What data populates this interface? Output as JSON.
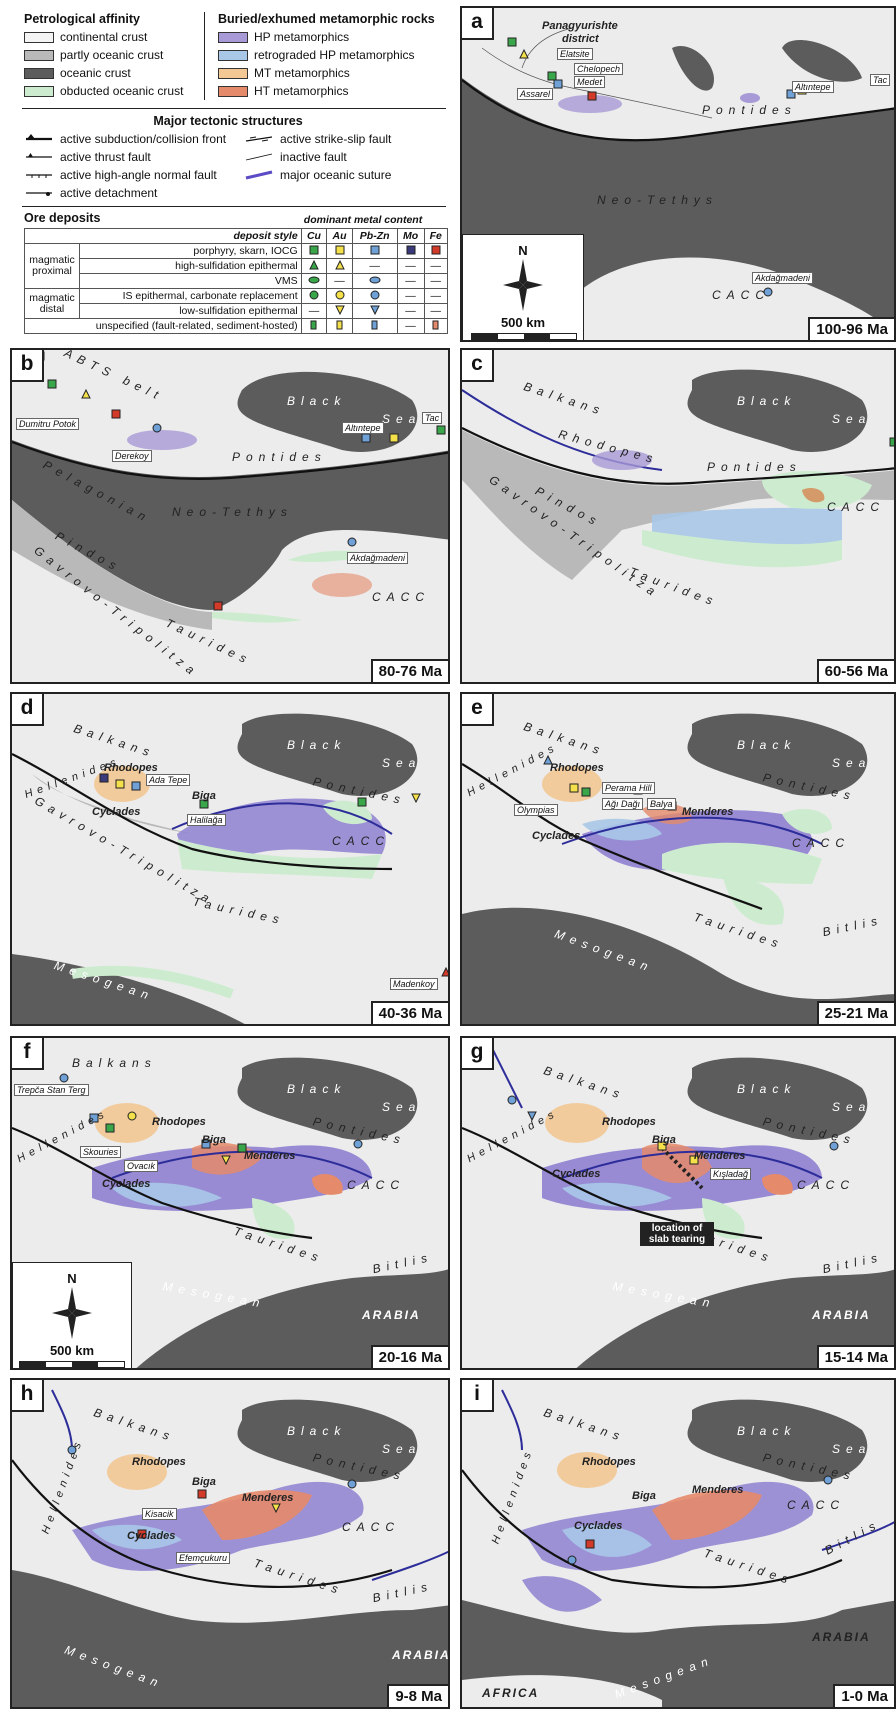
{
  "legend": {
    "petro_title": "Petrological affinity",
    "petro_items": [
      "continental crust",
      "partly oceanic crust",
      "oceanic crust",
      "obducted oceanic crust"
    ],
    "petro_colors": [
      "#f4f4f4",
      "#b9b9b9",
      "#5c5c5c",
      "#cdeccf"
    ],
    "meta_title": "Buried/exhumed metamorphic rocks",
    "meta_items": [
      "HP metamorphics",
      "retrograded HP metamorphics",
      "MT metamorphics",
      "HT metamorphics"
    ],
    "meta_colors": [
      "#a79ad6",
      "#a9c8e8",
      "#f3c894",
      "#e58a6a"
    ],
    "tect_title": "Major tectonic structures",
    "tect_items": [
      "active subduction/collision front",
      "active thrust fault",
      "active high-angle normal fault",
      "active detachment",
      "active strike-slip fault",
      "inactive fault",
      "major oceanic suture"
    ],
    "ore_title": "Ore deposits",
    "ore_header": "dominant metal content",
    "ore_style_header": "deposit style",
    "metals": [
      "Cu",
      "Au",
      "Pb-Zn",
      "Mo",
      "Fe"
    ],
    "ore_rows": [
      {
        "group": "magmatic proximal",
        "style": "porphyry, skarn, IOCG"
      },
      {
        "group": "",
        "style": "high-sulfidation epithermal"
      },
      {
        "group": "",
        "style": "VMS"
      },
      {
        "group": "magmatic distal",
        "style": "IS epithermal, carbonate replacement"
      },
      {
        "group": "",
        "style": "low-sulfidation epithermal"
      },
      {
        "group": "",
        "style": "unspecified (fault-related, sediment-hosted)"
      }
    ],
    "dash": "—"
  },
  "colors": {
    "sea": "#5c5c5c",
    "land": "#ececec",
    "partly": "#b9b9b9",
    "obducted": "#cdeccf",
    "hp": "#8a7ad0",
    "mt": "#f3c894",
    "ht": "#e58a6a",
    "suture": "#2d2d9a",
    "cu": "#3aa64a",
    "au": "#f4e04a",
    "pbzn": "#6fa0d6",
    "mo": "#3a3a7a",
    "fe": "#d23a2a"
  },
  "scale_label": "500 km",
  "north": "N",
  "panels": [
    {
      "id": "a",
      "age": "100-96 Ma",
      "places": [
        "Panagyurishte",
        "district",
        "Pontides",
        "Neo-Tethys",
        "CACC"
      ],
      "locs": [
        "Elatsite",
        "Chelopech",
        "Medet",
        "Assarel",
        "Altıntepe",
        "Tac",
        "Akdağmadeni"
      ]
    },
    {
      "id": "b",
      "age": "80-76 Ma",
      "places": [
        "ABTS belt",
        "Black",
        "Sea",
        "Pontides",
        "Neo-Tethys",
        "Pelagonian",
        "Pindos",
        "Gavrovo-Tripolitza",
        "Taurides",
        "CACC"
      ],
      "locs": [
        "Dumitru Potok",
        "Derekoy",
        "Altıntepe",
        "Tac",
        "Akdağmadeni"
      ]
    },
    {
      "id": "c",
      "age": "60-56 Ma",
      "places": [
        "Balkans",
        "Black",
        "Sea",
        "Rhodopes",
        "Pontides",
        "Pindos",
        "CACC",
        "Gavrovo-Tripolitza",
        "Taurides"
      ],
      "locs": []
    },
    {
      "id": "d",
      "age": "40-36 Ma",
      "places": [
        "Balkans",
        "Black",
        "Sea",
        "Rhodopes",
        "Hellenides",
        "Cyclades",
        "Biga",
        "Pontides",
        "Gavrovo-Tripolitza",
        "CACC",
        "Taurides",
        "Mesogean"
      ],
      "locs": [
        "Ada Tepe",
        "Halilağa",
        "Madenkoy"
      ]
    },
    {
      "id": "e",
      "age": "25-21 Ma",
      "places": [
        "Balkans",
        "Black",
        "Sea",
        "Hellenides",
        "Rhodopes",
        "Cyclades",
        "Menderes",
        "Pontides",
        "CACC",
        "Taurides",
        "Mesogean",
        "Bitlis"
      ],
      "locs": [
        "Perama Hill",
        "Olympias",
        "Ağı Dağı",
        "Balya"
      ]
    },
    {
      "id": "f",
      "age": "20-16 Ma",
      "places": [
        "Balkans",
        "Black",
        "Sea",
        "Hellenides",
        "Rhodopes",
        "Biga",
        "Menderes",
        "Pontides",
        "Cyclades",
        "CACC",
        "Taurides",
        "Bitlis",
        "Mesogean",
        "ARABIA"
      ],
      "locs": [
        "Trepča Stan Terg",
        "Skouries",
        "Ovacık"
      ]
    },
    {
      "id": "g",
      "age": "15-14 Ma",
      "places": [
        "Balkans",
        "Black",
        "Sea",
        "Hellenides",
        "Rhodopes",
        "Biga",
        "Menderes",
        "Pontides",
        "Cyclades",
        "CACC",
        "Taurides",
        "Bitlis",
        "Mesogean",
        "ARABIA"
      ],
      "locs": [
        "Kışladağ"
      ],
      "callout": "location of slab tearing"
    },
    {
      "id": "h",
      "age": "9-8 Ma",
      "places": [
        "Balkans",
        "Black",
        "Sea",
        "Hellenides",
        "Rhodopes",
        "Biga",
        "Pontides",
        "Menderes",
        "Cyclades",
        "CACC",
        "Taurides",
        "Bitlis",
        "ARABIA",
        "Mesogean"
      ],
      "locs": [
        "Kisacik",
        "Efemçukuru"
      ]
    },
    {
      "id": "i",
      "age": "1-0 Ma",
      "places": [
        "Balkans",
        "Black",
        "Sea",
        "Hellenides",
        "Rhodopes",
        "Pontides",
        "Biga",
        "Menderes",
        "CACC",
        "Cyclades",
        "Taurides",
        "Bitlis",
        "ARABIA",
        "AFRICA",
        "Mesogean"
      ],
      "locs": []
    }
  ]
}
